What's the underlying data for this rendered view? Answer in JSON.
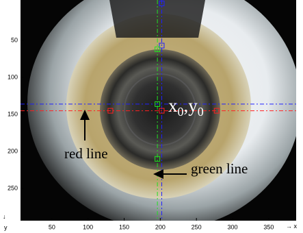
{
  "chart_data": {
    "type": "image",
    "xlim": [
      6.6,
      388
    ],
    "ylim": [
      -4.6,
      293.5
    ],
    "xticks": [
      50,
      100,
      150,
      200,
      250,
      300,
      350
    ],
    "yticks": [
      50,
      100,
      150,
      200,
      250
    ],
    "x_label": "x",
    "y_label": "y",
    "lines": [
      {
        "color": "#2020ff",
        "orientation": "vertical",
        "value": 202,
        "markers": [
          {
            "x": 202,
            "y": 0
          },
          {
            "x": 202,
            "y": 57
          }
        ]
      },
      {
        "color": "#2020ff",
        "orientation": "horizontal",
        "value": 136,
        "markers": []
      },
      {
        "color": "#ff2020",
        "orientation": "horizontal",
        "value": 145,
        "markers": [
          {
            "x": 131,
            "y": 145
          },
          {
            "x": 202,
            "y": 145
          },
          {
            "x": 278,
            "y": 145
          }
        ]
      },
      {
        "color": "#20e020",
        "orientation": "vertical",
        "value": 196,
        "markers": [
          {
            "x": 196,
            "y": 62
          },
          {
            "x": 196,
            "y": 136
          },
          {
            "x": 196,
            "y": 210
          }
        ]
      }
    ],
    "center_label": [
      "x",
      "0",
      ",y",
      "0"
    ],
    "annotations": [
      "red line",
      "green line"
    ]
  }
}
